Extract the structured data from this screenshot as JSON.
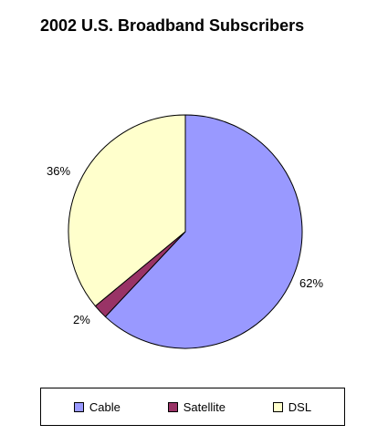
{
  "chart_data": {
    "type": "pie",
    "title": "2002 U.S. Broadband Subscribers",
    "categories": [
      "Cable",
      "Satellite",
      "DSL"
    ],
    "values": [
      62,
      2,
      36
    ],
    "data_labels": [
      "62%",
      "2%",
      "36%"
    ],
    "colors": [
      "#9999ff",
      "#993366",
      "#ffffcc"
    ],
    "legend_position": "bottom"
  }
}
